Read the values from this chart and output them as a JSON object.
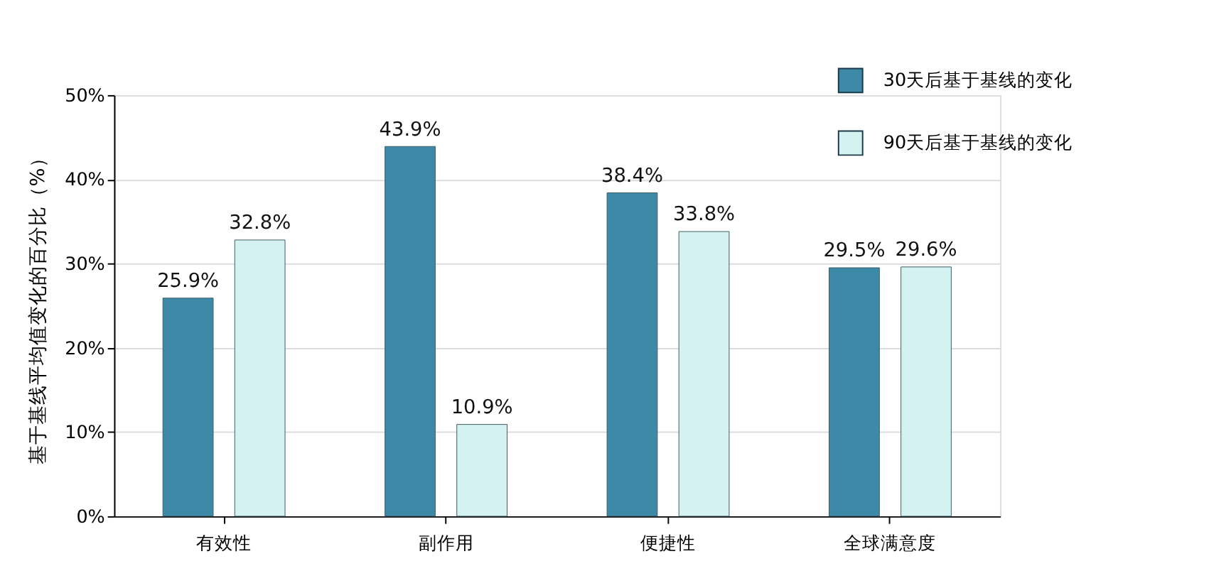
{
  "chart_data": {
    "type": "bar",
    "ylabel": "基于基线平均值变化的百分比（%）",
    "categories": [
      "有效性",
      "副作用",
      "便捷性",
      "全球满意度"
    ],
    "series": [
      {
        "name": "30天后基于基线的变化",
        "color": "#3d8aa8",
        "values": [
          25.9,
          43.9,
          38.4,
          29.5
        ],
        "value_labels": [
          "25.9%",
          "43.9%",
          "38.4%",
          "29.5%"
        ]
      },
      {
        "name": "90天后基于基线的变化",
        "color": "#d4f3f0",
        "values": [
          32.8,
          10.9,
          33.8,
          29.6
        ],
        "value_labels": [
          "32.8%",
          "10.9%",
          "33.8%",
          "29.6%"
        ]
      }
    ],
    "ylim": [
      0,
      50
    ],
    "yticks": [
      {
        "value": 0,
        "label": "0%"
      },
      {
        "value": 10,
        "label": "10%"
      },
      {
        "value": 20,
        "label": "20%"
      },
      {
        "value": 30,
        "label": "30%"
      },
      {
        "value": 40,
        "label": "40%"
      },
      {
        "value": 50,
        "label": "50%"
      }
    ],
    "grid": "y",
    "legend": "top right"
  }
}
